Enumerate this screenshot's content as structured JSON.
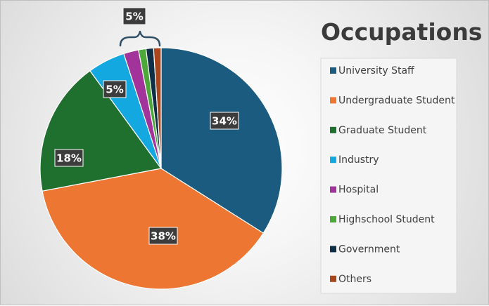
{
  "chart_data": {
    "type": "pie",
    "title": "Occupations",
    "legend_position": "right",
    "categories": [
      "University Staff",
      "Undergraduate Student",
      "Graduate Student",
      "Industry",
      "Hospital",
      "Highschool Student",
      "Government",
      "Others"
    ],
    "values": [
      34,
      38,
      18,
      5,
      2,
      1,
      1,
      1
    ],
    "colors": [
      "#1B5B7F",
      "#ED7632",
      "#1F6F2E",
      "#13A8E0",
      "#A1339A",
      "#4CA939",
      "#0E2F46",
      "#A9461C"
    ],
    "data_labels": [
      {
        "category": "University Staff",
        "text": "34%"
      },
      {
        "category": "Undergraduate Student",
        "text": "38%"
      },
      {
        "category": "Graduate Student",
        "text": "18%"
      },
      {
        "category": "Industry",
        "text": "5%"
      },
      {
        "category": "Hospital, Highschool Student, Government, Others",
        "text": "5%"
      }
    ]
  }
}
